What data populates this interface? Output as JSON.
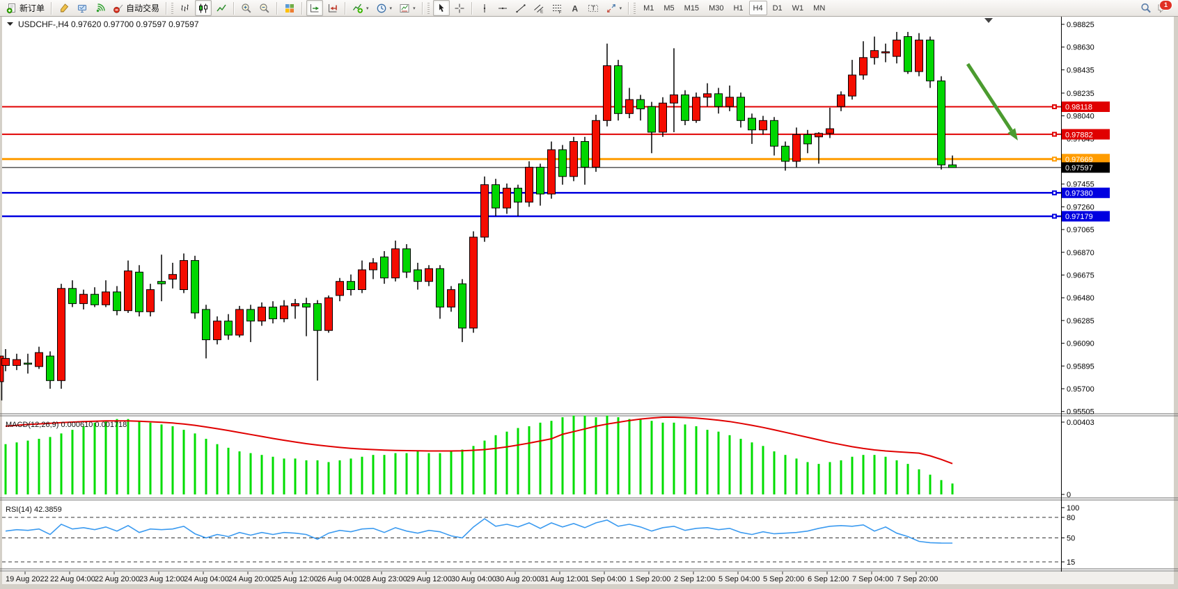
{
  "toolbar": {
    "groups": [
      {
        "buttons": [
          {
            "name": "new-order",
            "icon": "new-order-icon",
            "label": "新订单"
          }
        ]
      },
      {
        "buttons": [
          {
            "name": "style-brush",
            "icon": "brush-icon"
          },
          {
            "name": "vps",
            "icon": "vps-icon"
          },
          {
            "name": "signals",
            "icon": "signals-icon"
          },
          {
            "name": "autotrading",
            "icon": "autotrading-icon",
            "label": "自动交易"
          }
        ]
      },
      {
        "grip": true,
        "buttons": [
          {
            "name": "bar-chart-mode",
            "icon": "bar-chart-icon"
          },
          {
            "name": "candlestick-mode",
            "icon": "candlestick-icon",
            "active": true
          },
          {
            "name": "line-chart-mode",
            "icon": "line-chart-icon"
          }
        ]
      },
      {
        "buttons": [
          {
            "name": "zoom-in",
            "icon": "zoom-in-icon"
          },
          {
            "name": "zoom-out",
            "icon": "zoom-out-icon"
          }
        ]
      },
      {
        "buttons": [
          {
            "name": "tile-windows",
            "icon": "tiles-icon"
          }
        ]
      },
      {
        "buttons": [
          {
            "name": "auto-scroll",
            "icon": "auto-scroll-icon",
            "active": true
          },
          {
            "name": "chart-shift",
            "icon": "chart-shift-icon"
          }
        ]
      },
      {
        "buttons": [
          {
            "name": "indicators",
            "icon": "indicators-icon",
            "dropdown": true
          },
          {
            "name": "periods",
            "icon": "clock-icon",
            "dropdown": true
          },
          {
            "name": "templates",
            "icon": "template-icon",
            "dropdown": true
          }
        ]
      },
      {
        "grip": true,
        "buttons": [
          {
            "name": "cursor",
            "icon": "cursor-icon",
            "active": true
          },
          {
            "name": "crosshair",
            "icon": "crosshair-icon"
          }
        ]
      },
      {
        "buttons": [
          {
            "name": "vertical-line",
            "icon": "vline-icon"
          },
          {
            "name": "horizontal-line",
            "icon": "hline-icon"
          },
          {
            "name": "trendline",
            "icon": "trendline-icon"
          },
          {
            "name": "equidistant-channel",
            "icon": "channel-icon"
          },
          {
            "name": "fibonacci",
            "icon": "fibonacci-icon"
          },
          {
            "name": "text",
            "icon": "text-icon"
          },
          {
            "name": "text-label",
            "icon": "label-icon"
          },
          {
            "name": "arrows",
            "icon": "arrows-icon",
            "dropdown": true
          }
        ]
      }
    ],
    "timeframes": [
      {
        "label": "M1"
      },
      {
        "label": "M5"
      },
      {
        "label": "M15"
      },
      {
        "label": "M30"
      },
      {
        "label": "H1"
      },
      {
        "label": "H4",
        "active": true
      },
      {
        "label": "D1"
      },
      {
        "label": "W1"
      },
      {
        "label": "MN"
      }
    ],
    "right": [
      {
        "name": "search",
        "icon": "search-icon"
      },
      {
        "name": "chat",
        "icon": "chat-icon",
        "badge": "1"
      }
    ]
  },
  "chart_data": {
    "type": "candlestick",
    "symbol": "USDCHF-",
    "timeframe": "H4",
    "title": "USDCHF-,H4",
    "title_ohlc": {
      "open": "0.97620",
      "high": "0.97700",
      "low": "0.97597",
      "close": "0.97597"
    },
    "colors": {
      "bull_body": "#f40d00",
      "bear_body": "#00d600",
      "wick": "#000000",
      "line_red": "#e00000",
      "line_orange": "#ff9c00",
      "line_blue": "#0000e0",
      "line_black": "#000000",
      "macd_hist": "#00dd00",
      "macd_signal": "#e00000",
      "rsi_line": "#3a9af0",
      "arrow": "#4b9b2f"
    },
    "price_axis_ticks": [
      "0.98825",
      "0.98630",
      "0.98435",
      "0.98235",
      "0.98040",
      "0.97845",
      "0.97455",
      "0.97260",
      "0.97065",
      "0.96870",
      "0.96675",
      "0.96480",
      "0.96285",
      "0.96090",
      "0.95895",
      "0.95700",
      "0.95505"
    ],
    "line_objects": [
      {
        "label": "0.98118",
        "price": 0.98118,
        "color": "#e00000",
        "weight": 2
      },
      {
        "label": "0.97882",
        "price": 0.97882,
        "color": "#e00000",
        "weight": 2
      },
      {
        "label": "0.97669",
        "price": 0.97669,
        "color": "#ff9c00",
        "weight": 3
      },
      {
        "label": "0.97380",
        "price": 0.9738,
        "color": "#0000e0",
        "weight": 2.5
      },
      {
        "label": "0.97179",
        "price": 0.97179,
        "color": "#0000e0",
        "weight": 2.5
      }
    ],
    "current_price": {
      "label": "0.97597",
      "price": 0.97597
    },
    "partial_first_candle": {
      "body_top": 0.9598,
      "body_bottom": 0.9576,
      "wick_low": 0.956
    },
    "candles": [
      [
        0.959,
        0.9604,
        0.9585,
        0.9596
      ],
      [
        0.959,
        0.96,
        0.9586,
        0.9595
      ],
      [
        0.9592,
        0.96,
        0.9583,
        0.9591
      ],
      [
        0.9589,
        0.9606,
        0.9587,
        0.9601
      ],
      [
        0.9598,
        0.9602,
        0.957,
        0.9577
      ],
      [
        0.9577,
        0.966,
        0.957,
        0.9656
      ],
      [
        0.9656,
        0.9663,
        0.964,
        0.9643
      ],
      [
        0.9643,
        0.9655,
        0.9638,
        0.9651
      ],
      [
        0.9651,
        0.9657,
        0.964,
        0.9642
      ],
      [
        0.9642,
        0.9663,
        0.964,
        0.9653
      ],
      [
        0.9653,
        0.9658,
        0.9633,
        0.9637
      ],
      [
        0.9637,
        0.968,
        0.9635,
        0.9671
      ],
      [
        0.967,
        0.9676,
        0.9632,
        0.9636
      ],
      [
        0.9636,
        0.966,
        0.9632,
        0.9655
      ],
      [
        0.9662,
        0.9685,
        0.9645,
        0.966
      ],
      [
        0.9664,
        0.9678,
        0.9656,
        0.9668
      ],
      [
        0.9655,
        0.9686,
        0.9652,
        0.968
      ],
      [
        0.968,
        0.9684,
        0.963,
        0.9635
      ],
      [
        0.9638,
        0.9642,
        0.9596,
        0.9612
      ],
      [
        0.9612,
        0.9632,
        0.9608,
        0.9628
      ],
      [
        0.9628,
        0.9634,
        0.9612,
        0.9616
      ],
      [
        0.9616,
        0.9641,
        0.9614,
        0.9638
      ],
      [
        0.9638,
        0.9642,
        0.961,
        0.9628
      ],
      [
        0.9628,
        0.9644,
        0.9624,
        0.964
      ],
      [
        0.964,
        0.9645,
        0.9626,
        0.963
      ],
      [
        0.963,
        0.9646,
        0.9627,
        0.9641
      ],
      [
        0.9641,
        0.9647,
        0.963,
        0.9643
      ],
      [
        0.9643,
        0.9648,
        0.9615,
        0.964
      ],
      [
        0.9643,
        0.9646,
        0.9577,
        0.962
      ],
      [
        0.962,
        0.965,
        0.9618,
        0.9648
      ],
      [
        0.965,
        0.9665,
        0.9645,
        0.9662
      ],
      [
        0.9662,
        0.9668,
        0.965,
        0.9655
      ],
      [
        0.9655,
        0.968,
        0.9652,
        0.9672
      ],
      [
        0.9672,
        0.9682,
        0.9664,
        0.9678
      ],
      [
        0.9683,
        0.9688,
        0.966,
        0.9665
      ],
      [
        0.9665,
        0.9697,
        0.9662,
        0.969
      ],
      [
        0.969,
        0.9694,
        0.9665,
        0.967
      ],
      [
        0.9672,
        0.9678,
        0.9655,
        0.9662
      ],
      [
        0.9662,
        0.9676,
        0.9658,
        0.9673
      ],
      [
        0.9673,
        0.9676,
        0.963,
        0.964
      ],
      [
        0.964,
        0.9658,
        0.9636,
        0.9655
      ],
      [
        0.966,
        0.9664,
        0.961,
        0.9622
      ],
      [
        0.9622,
        0.9705,
        0.9618,
        0.97
      ],
      [
        0.97,
        0.9752,
        0.9696,
        0.9745
      ],
      [
        0.9745,
        0.975,
        0.9718,
        0.9725
      ],
      [
        0.9725,
        0.9746,
        0.972,
        0.9742
      ],
      [
        0.9742,
        0.9745,
        0.9718,
        0.973
      ],
      [
        0.973,
        0.9765,
        0.9726,
        0.976
      ],
      [
        0.976,
        0.9763,
        0.9727,
        0.9737
      ],
      [
        0.9737,
        0.9782,
        0.9733,
        0.9775
      ],
      [
        0.9775,
        0.9779,
        0.9745,
        0.9752
      ],
      [
        0.9752,
        0.9786,
        0.9748,
        0.9782
      ],
      [
        0.9782,
        0.9786,
        0.9745,
        0.976
      ],
      [
        0.976,
        0.9805,
        0.9756,
        0.98
      ],
      [
        0.98,
        0.9866,
        0.9795,
        0.9847
      ],
      [
        0.9847,
        0.9852,
        0.98,
        0.9806
      ],
      [
        0.9806,
        0.9828,
        0.9802,
        0.9818
      ],
      [
        0.9818,
        0.9822,
        0.98,
        0.981
      ],
      [
        0.9812,
        0.9816,
        0.9772,
        0.979
      ],
      [
        0.979,
        0.982,
        0.9786,
        0.9815
      ],
      [
        0.9815,
        0.9862,
        0.979,
        0.9822
      ],
      [
        0.9822,
        0.9826,
        0.9796,
        0.98
      ],
      [
        0.98,
        0.9824,
        0.9798,
        0.982
      ],
      [
        0.982,
        0.9832,
        0.9812,
        0.9823
      ],
      [
        0.9823,
        0.9828,
        0.9806,
        0.9812
      ],
      [
        0.9812,
        0.983,
        0.9808,
        0.982
      ],
      [
        0.982,
        0.9824,
        0.9794,
        0.98
      ],
      [
        0.9802,
        0.9806,
        0.978,
        0.9792
      ],
      [
        0.9792,
        0.9804,
        0.9788,
        0.98
      ],
      [
        0.98,
        0.9803,
        0.977,
        0.9778
      ],
      [
        0.9778,
        0.9782,
        0.9757,
        0.9765
      ],
      [
        0.9765,
        0.9794,
        0.976,
        0.9788
      ],
      [
        0.9788,
        0.9792,
        0.9772,
        0.978
      ],
      [
        0.9786,
        0.979,
        0.9763,
        0.9789
      ],
      [
        0.9789,
        0.9811,
        0.9785,
        0.9793
      ],
      [
        0.9812,
        0.9825,
        0.9808,
        0.9822
      ],
      [
        0.9821,
        0.9852,
        0.9818,
        0.9839
      ],
      [
        0.9839,
        0.9868,
        0.9835,
        0.9854
      ],
      [
        0.9854,
        0.9872,
        0.9848,
        0.986
      ],
      [
        0.9858,
        0.9866,
        0.985,
        0.9859
      ],
      [
        0.9855,
        0.9876,
        0.9849,
        0.9869
      ],
      [
        0.9872,
        0.9876,
        0.984,
        0.9842
      ],
      [
        0.9842,
        0.9875,
        0.9838,
        0.9869
      ],
      [
        0.9869,
        0.9872,
        0.9828,
        0.9834
      ],
      [
        0.9834,
        0.9838,
        0.9758,
        0.9762
      ],
      [
        0.9762,
        0.977,
        0.97597,
        0.97597
      ]
    ],
    "time_axis_labels": [
      "19 Aug 2022",
      "22 Aug 04:00",
      "22 Aug 20:00",
      "23 Aug 12:00",
      "24 Aug 04:00",
      "24 Aug 20:00",
      "25 Aug 12:00",
      "26 Aug 04:00",
      "28 Aug 23:00",
      "29 Aug 12:00",
      "30 Aug 04:00",
      "30 Aug 20:00",
      "31 Aug 12:00",
      "1 Sep 04:00",
      "1 Sep 20:00",
      "2 Sep 12:00",
      "5 Sep 04:00",
      "5 Sep 20:00",
      "6 Sep 12:00",
      "7 Sep 04:00",
      "7 Sep 20:00"
    ],
    "macd": {
      "label": "MACD(12,26,9)",
      "main_value": "0.000610",
      "signal_value": "0.001718",
      "axis_max": "0.00403",
      "axis_min": "0",
      "histogram": [
        0.0028,
        0.0029,
        0.003,
        0.0031,
        0.0032,
        0.0034,
        0.0036,
        0.0038,
        0.004,
        0.0041,
        0.0042,
        0.0042,
        0.0041,
        0.004,
        0.0039,
        0.0038,
        0.0036,
        0.0034,
        0.0031,
        0.0028,
        0.0026,
        0.0024,
        0.0023,
        0.0022,
        0.0021,
        0.002,
        0.002,
        0.0019,
        0.0019,
        0.0018,
        0.0019,
        0.002,
        0.0021,
        0.0022,
        0.0022,
        0.0023,
        0.0023,
        0.0024,
        0.0023,
        0.0023,
        0.0024,
        0.0025,
        0.0027,
        0.003,
        0.0033,
        0.0035,
        0.0037,
        0.0038,
        0.004,
        0.0041,
        0.0043,
        0.0044,
        0.0044,
        0.0043,
        0.0044,
        0.0043,
        0.0042,
        0.0042,
        0.0041,
        0.004,
        0.004,
        0.0039,
        0.0038,
        0.0036,
        0.0035,
        0.0033,
        0.0031,
        0.0029,
        0.0027,
        0.0024,
        0.0022,
        0.002,
        0.0018,
        0.0017,
        0.0018,
        0.0019,
        0.0021,
        0.0022,
        0.0022,
        0.0021,
        0.0019,
        0.0017,
        0.0014,
        0.0011,
        0.0008,
        0.00061
      ],
      "signal": [
        0.0038,
        0.00385,
        0.0039,
        0.00393,
        0.00396,
        0.004,
        0.00403,
        0.00406,
        0.00408,
        0.0041,
        0.0041,
        0.0041,
        0.00408,
        0.00405,
        0.00402,
        0.00398,
        0.00392,
        0.00385,
        0.00376,
        0.00366,
        0.00356,
        0.00345,
        0.00334,
        0.00323,
        0.00312,
        0.00302,
        0.00292,
        0.00283,
        0.00275,
        0.00268,
        0.00262,
        0.00257,
        0.00253,
        0.0025,
        0.00247,
        0.00245,
        0.00244,
        0.00243,
        0.00242,
        0.00242,
        0.00242,
        0.00243,
        0.00246,
        0.0025,
        0.00257,
        0.00265,
        0.00275,
        0.00286,
        0.00298,
        0.0031,
        0.00335,
        0.0035,
        0.00365,
        0.0038,
        0.00392,
        0.00402,
        0.00412,
        0.0042,
        0.00426,
        0.0043,
        0.0043,
        0.00428,
        0.00425,
        0.0042,
        0.00414,
        0.00406,
        0.00396,
        0.00385,
        0.00373,
        0.0036,
        0.00346,
        0.00332,
        0.00318,
        0.00304,
        0.0029,
        0.00278,
        0.00266,
        0.00256,
        0.00248,
        0.00242,
        0.00238,
        0.00234,
        0.0023,
        0.00215,
        0.00195,
        0.001718
      ]
    },
    "rsi": {
      "label": "RSI(14)",
      "value": "42.3859",
      "axis_labels": [
        "100",
        "80",
        "50",
        "15"
      ],
      "levels": [
        80,
        50,
        15
      ],
      "series": [
        60,
        62,
        61,
        63,
        55,
        70,
        63,
        65,
        62,
        66,
        60,
        68,
        58,
        63,
        62,
        63,
        67,
        56,
        50,
        55,
        52,
        58,
        54,
        58,
        55,
        58,
        57,
        55,
        48,
        57,
        61,
        59,
        63,
        64,
        58,
        65,
        60,
        57,
        61,
        59,
        53,
        50,
        66,
        78,
        67,
        70,
        66,
        72,
        64,
        72,
        66,
        71,
        65,
        72,
        76,
        67,
        70,
        66,
        60,
        65,
        67,
        61,
        64,
        65,
        62,
        64,
        58,
        55,
        59,
        56,
        57,
        58,
        60,
        64,
        67,
        68,
        67,
        69,
        60,
        66,
        57,
        52,
        45,
        43,
        42.5,
        42.39
      ]
    },
    "annotation_arrow": {
      "from": [
        1390,
        68
      ],
      "to": [
        1462,
        178
      ]
    }
  }
}
